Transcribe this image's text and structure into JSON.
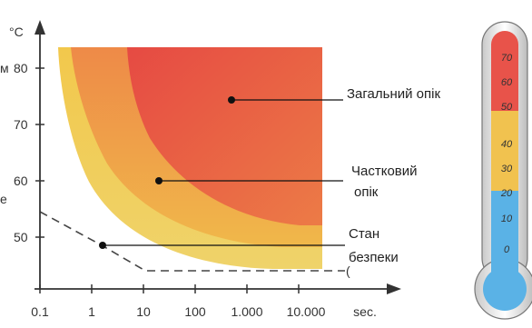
{
  "y_axis": {
    "unit": "°C",
    "ticks": [
      "80",
      "70",
      "60",
      "50"
    ]
  },
  "x_axis": {
    "unit": "sec.",
    "ticks": [
      "0.1",
      "1",
      "10",
      "100",
      "1.000",
      "10.000"
    ]
  },
  "regions": {
    "full_burn": "Загальний опік",
    "partial_burn_line1": "Частковий",
    "partial_burn_line2": "опік",
    "safe_line1": "Стан",
    "safe_line2": "безпеки"
  },
  "edge_fragments": {
    "left_m": "м",
    "left_e": "е"
  },
  "thermometer": {
    "marks": [
      "70",
      "60",
      "50",
      "40",
      "30",
      "20",
      "10",
      "0"
    ],
    "colors": {
      "hot": "#e8534a",
      "warm": "#f1c24f",
      "cool": "#5ab2e6"
    }
  },
  "colors": {
    "full_burn": "#e24d43",
    "partial_burn": "#ee8a4a",
    "safe_band": "#f0c94a",
    "safe_line": "#555555",
    "axis": "#333333"
  }
}
